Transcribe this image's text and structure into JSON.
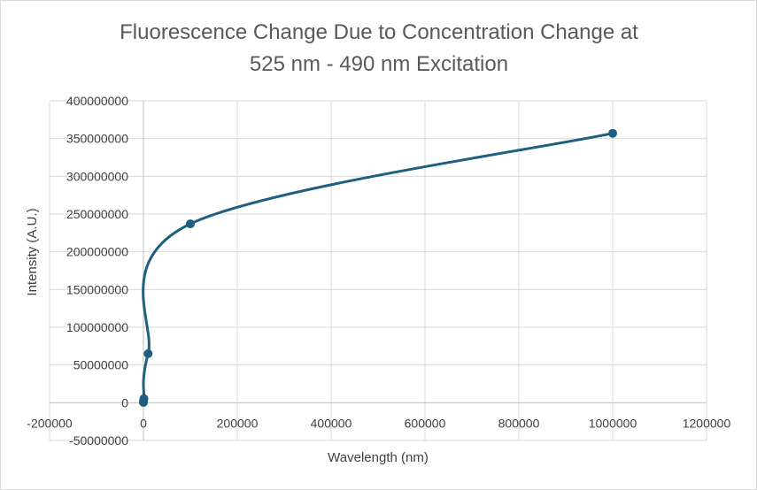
{
  "chart_data": {
    "type": "scatter",
    "title_lines": [
      "Fluorescence Change Due to Concentration Change at",
      "525 nm - 490 nm Excitation"
    ],
    "xlabel": "Wavelength (nm)",
    "ylabel": "Intensity (A.U.)",
    "xlim": [
      -200000,
      1200000
    ],
    "ylim": [
      -50000000,
      400000000
    ],
    "x_ticks": [
      -200000,
      0,
      200000,
      400000,
      600000,
      800000,
      1000000,
      1200000
    ],
    "x_tick_labels": [
      "-200000",
      "0",
      "200000",
      "400000",
      "600000",
      "800000",
      "1000000",
      "1200000"
    ],
    "y_ticks": [
      -50000000,
      0,
      50000000,
      100000000,
      150000000,
      200000000,
      250000000,
      300000000,
      350000000,
      400000000
    ],
    "y_tick_labels": [
      "-50000000",
      "0",
      "50000000",
      "100000000",
      "150000000",
      "200000000",
      "250000000",
      "300000000",
      "350000000",
      "400000000"
    ],
    "grid": true,
    "smooth_line": true,
    "series": [
      {
        "color": "#1f5f7f",
        "points": [
          {
            "x": 1,
            "y": 500000
          },
          {
            "x": 10,
            "y": 1200000
          },
          {
            "x": 100,
            "y": 2500000
          },
          {
            "x": 1000,
            "y": 5500000
          },
          {
            "x": 10000,
            "y": 65000000
          },
          {
            "x": 100000,
            "y": 237000000
          },
          {
            "x": 1000000,
            "y": 357000000
          }
        ]
      }
    ]
  }
}
